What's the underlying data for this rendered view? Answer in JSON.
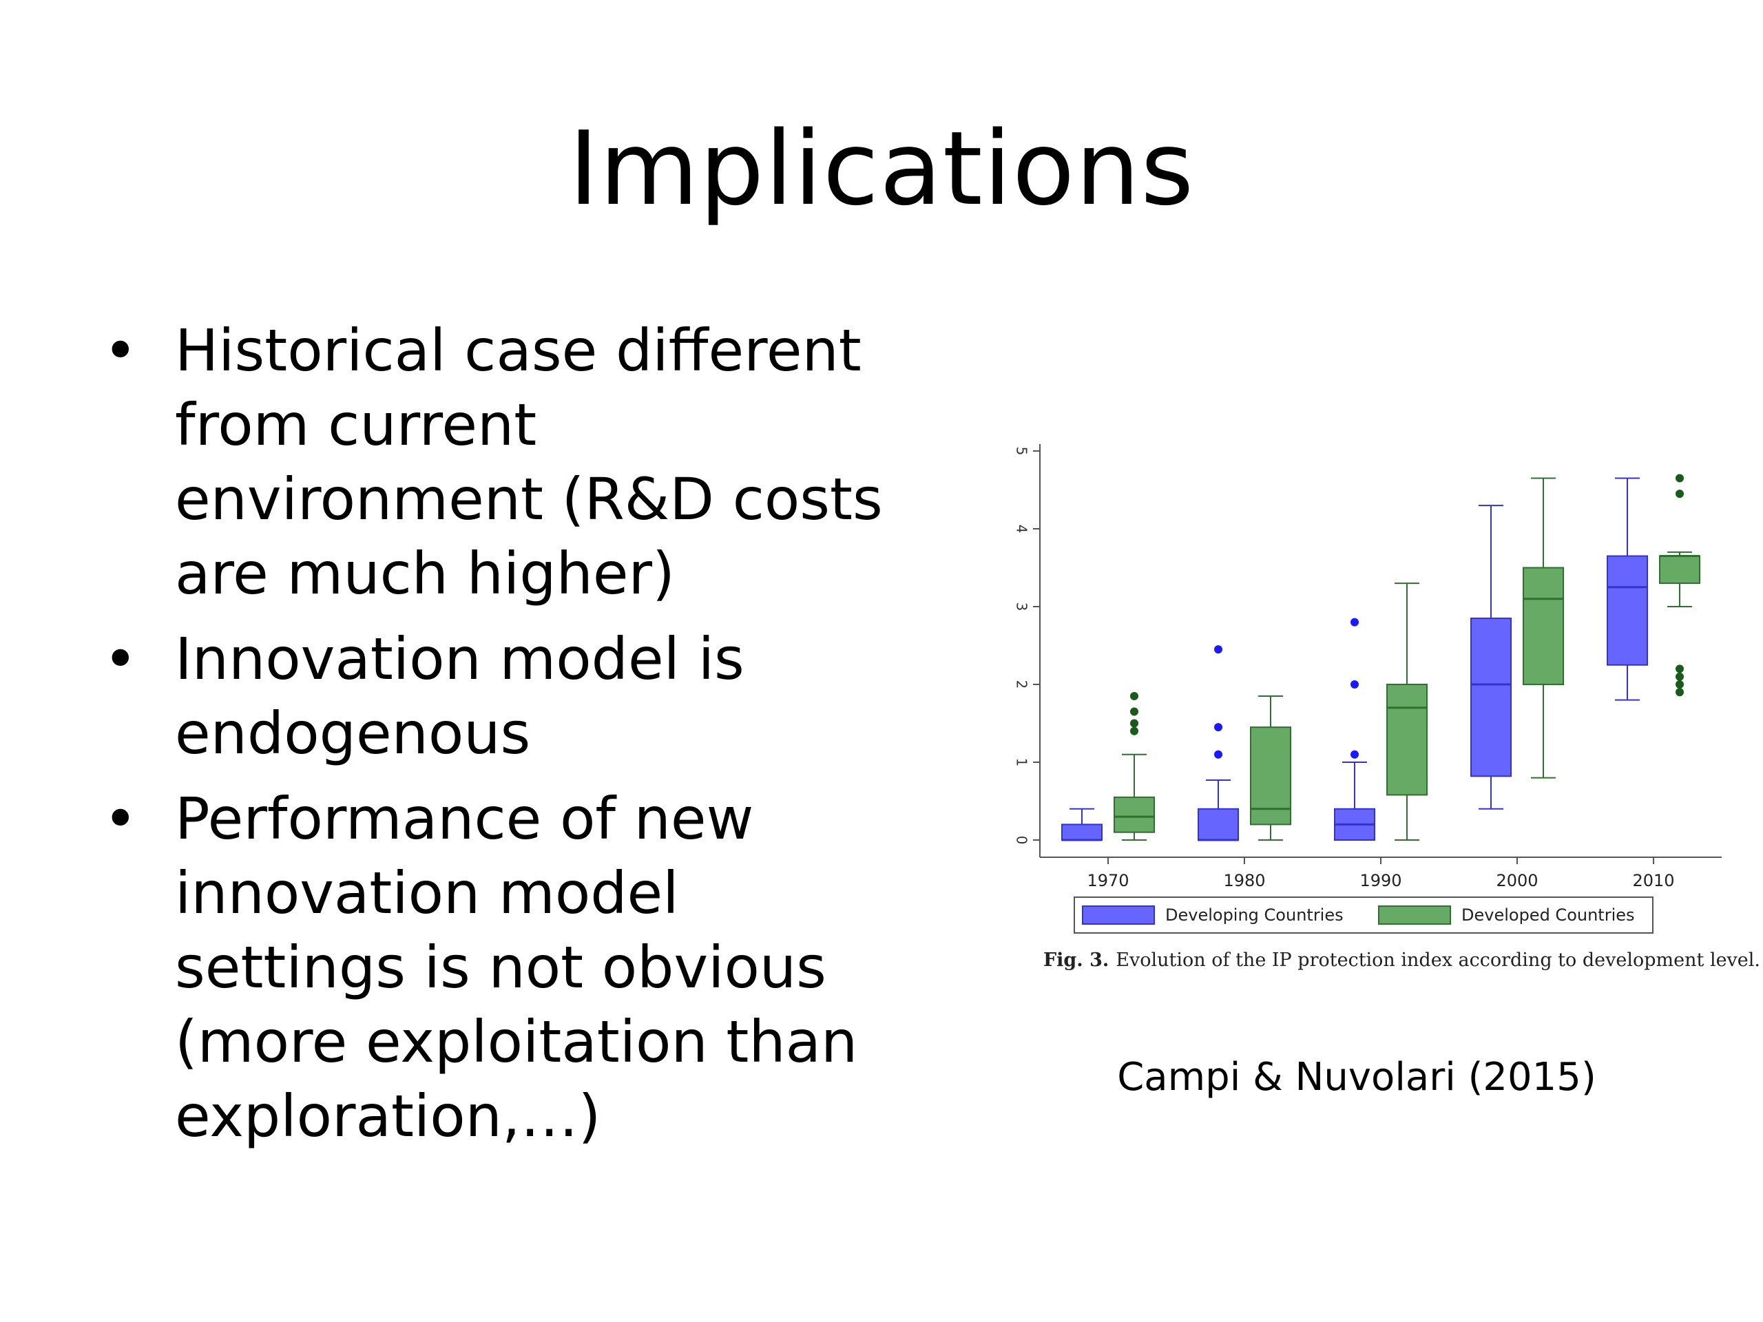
{
  "slide": {
    "title": "Implications",
    "bullet_marker": "•",
    "bullets": [
      {
        "lines": [
          "Historical case different",
          "from current",
          "environment (R&D costs",
          "are much higher)"
        ]
      },
      {
        "lines": [
          "Innovation model is",
          "endogenous"
        ]
      },
      {
        "lines": [
          "Performance of new",
          "innovation model",
          "settings is not obvious",
          "(more exploitation than",
          "exploration,…)"
        ]
      }
    ],
    "figure_caption": {
      "label": "Fig. 3.",
      "text": "Evolution of the IP protection index according to development level."
    },
    "citation": "Campi & Nuvolari (2015)"
  },
  "chart_data": {
    "type": "boxplot",
    "categories": [
      "1970",
      "1980",
      "1990",
      "2000",
      "2010"
    ],
    "ylim": [
      0,
      5
    ],
    "yticks": [
      0,
      1,
      2,
      3,
      4,
      5
    ],
    "grid": false,
    "legend_position": "bottom",
    "series": [
      {
        "name": "Developing Countries",
        "color": "#6666ff",
        "edge_color": "#3333cc",
        "outlier_color": "#1a1aff",
        "boxes": [
          {
            "whisker_low": 0.0,
            "q1": 0.0,
            "median": 0.0,
            "q3": 0.2,
            "whisker_high": 0.4,
            "outliers": []
          },
          {
            "whisker_low": 0.0,
            "q1": 0.0,
            "median": 0.0,
            "q3": 0.4,
            "whisker_high": 0.77,
            "outliers": [
              1.1,
              1.45,
              2.45
            ]
          },
          {
            "whisker_low": 0.0,
            "q1": 0.0,
            "median": 0.2,
            "q3": 0.4,
            "whisker_high": 1.0,
            "outliers": [
              1.1,
              2.0,
              2.8
            ]
          },
          {
            "whisker_low": 0.4,
            "q1": 0.82,
            "median": 2.0,
            "q3": 2.85,
            "whisker_high": 4.3,
            "outliers": []
          },
          {
            "whisker_low": 1.8,
            "q1": 2.25,
            "median": 3.25,
            "q3": 3.65,
            "whisker_high": 4.65,
            "outliers": []
          }
        ]
      },
      {
        "name": "Developed Countries",
        "color": "#66aa66",
        "edge_color": "#2f6f2f",
        "outlier_color": "#1a5a1a",
        "boxes": [
          {
            "whisker_low": 0.0,
            "q1": 0.1,
            "median": 0.3,
            "q3": 0.55,
            "whisker_high": 1.1,
            "outliers": [
              1.4,
              1.5,
              1.65,
              1.85
            ]
          },
          {
            "whisker_low": 0.0,
            "q1": 0.2,
            "median": 0.4,
            "q3": 1.45,
            "whisker_high": 1.85,
            "outliers": []
          },
          {
            "whisker_low": 0.0,
            "q1": 0.58,
            "median": 1.7,
            "q3": 2.0,
            "whisker_high": 3.3,
            "outliers": []
          },
          {
            "whisker_low": 0.8,
            "q1": 2.0,
            "median": 3.1,
            "q3": 3.5,
            "whisker_high": 4.65,
            "outliers": []
          },
          {
            "whisker_low": 3.0,
            "q1": 3.3,
            "median": 3.65,
            "q3": 3.65,
            "whisker_high": 3.7,
            "outliers": [
              1.9,
              2.0,
              2.1,
              2.2,
              4.45,
              4.65
            ]
          }
        ]
      }
    ]
  }
}
